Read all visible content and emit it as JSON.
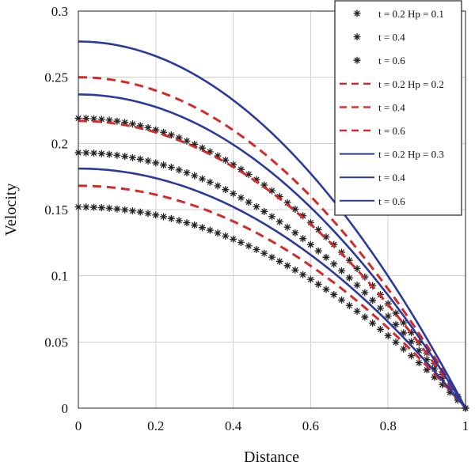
{
  "chart_data": {
    "type": "line",
    "title": "",
    "xlabel": "Distance",
    "ylabel": "Velocity",
    "xlim": [
      0,
      1
    ],
    "ylim": [
      0,
      0.3
    ],
    "xticks": [
      "0",
      "0.2",
      "0.4",
      "0.6",
      "0.8",
      "1"
    ],
    "yticks": [
      "0",
      "0.05",
      "0.1",
      "0.15",
      "0.2",
      "0.25",
      "0.3"
    ],
    "grid": true,
    "legend_position": "top-right",
    "x": [
      0,
      0.05,
      0.1,
      0.15,
      0.2,
      0.25,
      0.3,
      0.35,
      0.4,
      0.45,
      0.5,
      0.55,
      0.6,
      0.65,
      0.7,
      0.75,
      0.8,
      0.85,
      0.9,
      0.95,
      1.0
    ],
    "series": [
      {
        "legend": "t = 0.2 Hp = 0.1",
        "style": "asterisk",
        "color": "#222222",
        "peak": 0.219
      },
      {
        "legend": "t = 0.4",
        "style": "asterisk",
        "color": "#222222",
        "peak": 0.193
      },
      {
        "legend": "t = 0.6",
        "style": "asterisk",
        "color": "#222222",
        "peak": 0.152
      },
      {
        "legend": "t = 0.2 Hp = 0.2",
        "style": "dashed",
        "color": "#d42a2a",
        "peak": 0.25
      },
      {
        "legend": "t = 0.4",
        "style": "dashed",
        "color": "#d42a2a",
        "peak": 0.217
      },
      {
        "legend": "t = 0.6",
        "style": "dashed",
        "color": "#d42a2a",
        "peak": 0.168
      },
      {
        "legend": "t = 0.2 Hp = 0.3",
        "style": "solid",
        "color": "#2b3a9c",
        "peak": 0.277
      },
      {
        "legend": "t = 0.4",
        "style": "solid",
        "color": "#2b3a9c",
        "peak": 0.237
      },
      {
        "legend": "t = 0.6",
        "style": "solid",
        "color": "#2b3a9c",
        "peak": 0.181
      }
    ]
  }
}
